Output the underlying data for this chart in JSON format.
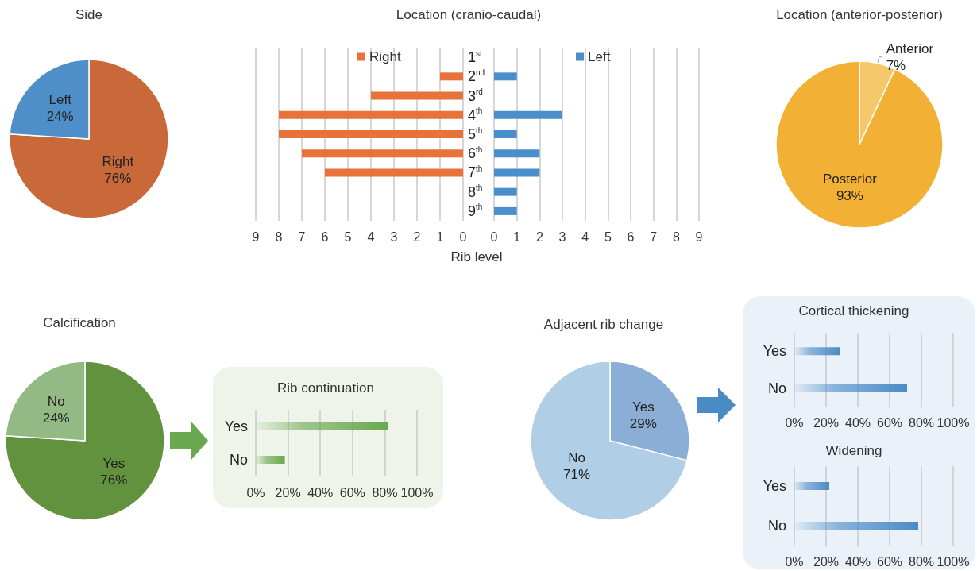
{
  "chart_data": [
    {
      "type": "pie",
      "title": "Side",
      "categories": [
        "Right",
        "Left"
      ],
      "values": [
        76,
        24
      ],
      "value_labels": [
        "76%",
        "24%"
      ],
      "colors": [
        "#c9693a",
        "#4f8fc9"
      ],
      "legend": false
    },
    {
      "type": "bar",
      "orientation": "horizontal",
      "title": "Location (cranio-caudal)",
      "xlabel": "Rib level",
      "categories": [
        "1$^{st}$",
        "2$^{nd}$",
        "3$^{rd}$",
        "4$^{th}$",
        "5$^{th}$",
        "6$^{th}$",
        "7$^{th}$",
        "8$^{th}$",
        "9$^{th}$"
      ],
      "series": [
        {
          "name": "Right",
          "color": "#e8733a",
          "values": [
            0,
            1,
            4,
            8,
            8,
            7,
            6,
            0,
            0
          ]
        }
      ],
      "xlim": [
        9,
        0
      ],
      "xticks": [
        9,
        8,
        7,
        6,
        5,
        4,
        3,
        2,
        1,
        0
      ],
      "grid": "x",
      "legend": "top"
    },
    {
      "type": "bar",
      "orientation": "horizontal",
      "series": [
        {
          "name": "Left",
          "color": "#4a8fcb",
          "values": [
            0,
            1,
            0,
            3,
            1,
            2,
            2,
            1,
            1
          ]
        }
      ],
      "xlim": [
        0,
        9
      ],
      "xticks": [
        0,
        1,
        2,
        3,
        4,
        5,
        6,
        7,
        8,
        9
      ],
      "grid": "x",
      "legend": "top"
    },
    {
      "type": "pie",
      "title": "Location (anterior-posterior)",
      "categories": [
        "Anterior",
        "Posterior"
      ],
      "values": [
        7,
        93
      ],
      "value_labels": [
        "7%",
        "93%"
      ],
      "colors": [
        "#f5c96b",
        "#f2b134"
      ],
      "legend": false
    },
    {
      "type": "pie",
      "title": "Calcification",
      "categories": [
        "Yes",
        "No"
      ],
      "values": [
        76,
        24
      ],
      "value_labels": [
        "76%",
        "24%"
      ],
      "colors": [
        "#63923f",
        "#93b985"
      ],
      "legend": false
    },
    {
      "type": "bar",
      "orientation": "horizontal",
      "title": "Rib continuation",
      "categories": [
        "Yes",
        "No"
      ],
      "values": [
        82,
        18
      ],
      "color": "#6aa84f",
      "xlim": [
        0,
        100
      ],
      "xticks": [
        {
          "value": 0,
          "label": "0%"
        },
        {
          "value": 20,
          "label": "20%"
        },
        {
          "value": 40,
          "label": "40%"
        },
        {
          "value": 60,
          "label": "60%"
        },
        {
          "value": 80,
          "label": "80%"
        },
        {
          "value": 100,
          "label": "100%"
        }
      ],
      "grid": "x",
      "legend": false
    },
    {
      "type": "pie",
      "title": "Adjacent rib change",
      "categories": [
        "Yes",
        "No"
      ],
      "values": [
        29,
        71
      ],
      "value_labels": [
        "29%",
        "71%"
      ],
      "colors": [
        "#8aaed6",
        "#b0cfe6"
      ],
      "legend": false
    },
    {
      "type": "bar",
      "orientation": "horizontal",
      "title": "Cortical thickening",
      "categories": [
        "Yes",
        "No"
      ],
      "values": [
        29,
        71
      ],
      "color": "#4a8bc6",
      "xlim": [
        0,
        100
      ],
      "xticks": [
        {
          "value": 0,
          "label": "0%"
        },
        {
          "value": 20,
          "label": "20%"
        },
        {
          "value": 40,
          "label": "40%"
        },
        {
          "value": 60,
          "label": "60%"
        },
        {
          "value": 80,
          "label": "80%"
        },
        {
          "value": 100,
          "label": "100%"
        }
      ],
      "grid": "x",
      "legend": false
    },
    {
      "type": "bar",
      "orientation": "horizontal",
      "title": "Widening",
      "categories": [
        "Yes",
        "No"
      ],
      "values": [
        22,
        78
      ],
      "color": "#4a8bc6",
      "xlim": [
        0,
        100
      ],
      "xticks": [
        {
          "value": 0,
          "label": "0%"
        },
        {
          "value": 20,
          "label": "20%"
        },
        {
          "value": 40,
          "label": "40%"
        },
        {
          "value": 60,
          "label": "60%"
        },
        {
          "value": 80,
          "label": "80%"
        },
        {
          "value": 100,
          "label": "100%"
        }
      ],
      "grid": "x",
      "legend": false
    }
  ]
}
